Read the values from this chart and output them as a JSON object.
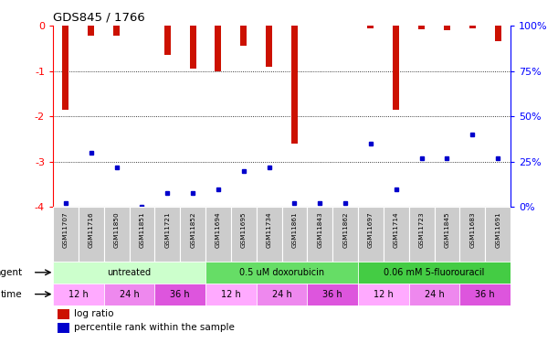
{
  "title": "GDS845 / 1766",
  "samples": [
    "GSM11707",
    "GSM11716",
    "GSM11850",
    "GSM11851",
    "GSM11721",
    "GSM11852",
    "GSM11694",
    "GSM11695",
    "GSM11734",
    "GSM11861",
    "GSM11843",
    "GSM11862",
    "GSM11697",
    "GSM11714",
    "GSM11723",
    "GSM11845",
    "GSM11683",
    "GSM11691"
  ],
  "log_ratios": [
    -1.85,
    -0.22,
    -0.22,
    0.0,
    -0.65,
    -0.95,
    -1.0,
    -0.45,
    -0.9,
    -2.6,
    0.0,
    0.0,
    -0.05,
    -1.85,
    -0.07,
    -0.1,
    -0.05,
    -0.35
  ],
  "percentile_ranks": [
    2,
    30,
    22,
    0,
    8,
    8,
    10,
    20,
    22,
    2,
    2,
    2,
    35,
    10,
    27,
    27,
    40,
    27
  ],
  "agent_groups": [
    {
      "label": "untreated",
      "start": 0,
      "end": 6,
      "color": "#ccffcc"
    },
    {
      "label": "0.5 uM doxorubicin",
      "start": 6,
      "end": 12,
      "color": "#66dd66"
    },
    {
      "label": "0.06 mM 5-fluorouracil",
      "start": 12,
      "end": 18,
      "color": "#44cc44"
    }
  ],
  "time_groups": [
    {
      "label": "12 h",
      "start": 0,
      "end": 2,
      "color": "#ffaaff"
    },
    {
      "label": "24 h",
      "start": 2,
      "end": 4,
      "color": "#ee88ee"
    },
    {
      "label": "36 h",
      "start": 4,
      "end": 6,
      "color": "#dd55dd"
    },
    {
      "label": "12 h",
      "start": 6,
      "end": 8,
      "color": "#ffaaff"
    },
    {
      "label": "24 h",
      "start": 8,
      "end": 10,
      "color": "#ee88ee"
    },
    {
      "label": "36 h",
      "start": 10,
      "end": 12,
      "color": "#dd55dd"
    },
    {
      "label": "12 h",
      "start": 12,
      "end": 14,
      "color": "#ffaaff"
    },
    {
      "label": "24 h",
      "start": 14,
      "end": 16,
      "color": "#ee88ee"
    },
    {
      "label": "36 h",
      "start": 16,
      "end": 18,
      "color": "#dd55dd"
    }
  ],
  "ylim": [
    -4,
    0
  ],
  "yticks_left": [
    0,
    -1,
    -2,
    -3,
    -4
  ],
  "yticks_right_vals": [
    0,
    -1,
    -2,
    -3,
    -4
  ],
  "yticks_right_labels": [
    "100%",
    "75%",
    "50%",
    "25%",
    "0%"
  ],
  "bar_color": "#cc1100",
  "dot_color": "#0000cc",
  "background_color": "#ffffff",
  "plot_bg": "#ffffff",
  "sample_bg": "#cccccc"
}
